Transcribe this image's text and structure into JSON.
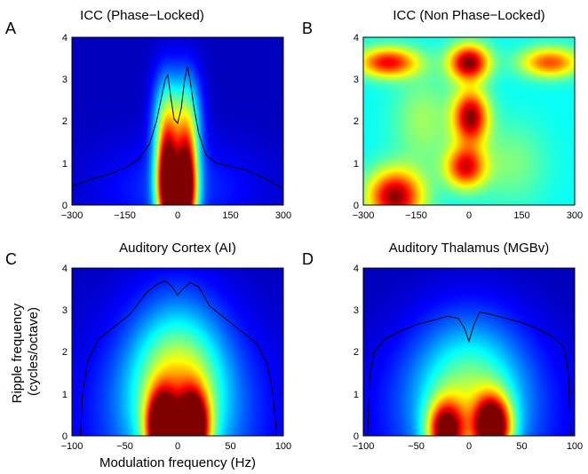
{
  "chart_data": [
    {
      "type": "heatmap",
      "panel_label": "A",
      "title": "ICC (Phase−Locked)",
      "xlim": [
        -300,
        300
      ],
      "ylim": [
        0,
        4
      ],
      "x_ticks": [
        "−300",
        "−150",
        "0",
        "150",
        "300"
      ],
      "y_ticks": [
        "0",
        "1",
        "2",
        "3",
        "4"
      ],
      "contour_x": [
        -300,
        -250,
        -200,
        -150,
        -110,
        -80,
        -60,
        -45,
        -35,
        -28,
        -20,
        -10,
        0,
        10,
        20,
        28,
        35,
        45,
        60,
        80,
        110,
        150,
        200,
        250,
        300
      ],
      "contour_y": [
        0.45,
        0.6,
        0.72,
        0.88,
        1.1,
        1.45,
        2.0,
        2.6,
        3.0,
        3.1,
        2.6,
        2.05,
        1.95,
        2.3,
        3.0,
        3.3,
        3.0,
        2.4,
        1.7,
        1.2,
        1.0,
        0.92,
        0.82,
        0.62,
        0.38
      ],
      "peaks": [
        {
          "x": -30,
          "y": 0.5,
          "sx": 22,
          "sy": 0.9,
          "a": 1.0
        },
        {
          "x": 25,
          "y": 0.4,
          "sx": 22,
          "sy": 0.9,
          "a": 1.0
        },
        {
          "x": -32,
          "y": 2.1,
          "sx": 28,
          "sy": 0.8,
          "a": 0.35
        },
        {
          "x": 28,
          "y": 2.1,
          "sx": 28,
          "sy": 0.8,
          "a": 0.35
        },
        {
          "x": 0,
          "y": 0.4,
          "sx": 160,
          "sy": 0.8,
          "a": 0.12
        }
      ],
      "base": 0.06
    },
    {
      "type": "heatmap",
      "panel_label": "B",
      "title": "ICC (Non Phase−Locked)",
      "xlim": [
        -300,
        300
      ],
      "ylim": [
        0,
        4
      ],
      "x_ticks": [
        "−300",
        "−150",
        "0",
        "150",
        "300"
      ],
      "y_ticks": [
        "0",
        "1",
        "2",
        "3",
        "4"
      ],
      "peaks": [
        {
          "x": -210,
          "y": 0.2,
          "sx": 55,
          "sy": 0.45,
          "a": 0.6
        },
        {
          "x": -230,
          "y": 3.4,
          "sx": 60,
          "sy": 0.25,
          "a": 0.5
        },
        {
          "x": 0,
          "y": 3.4,
          "sx": 40,
          "sy": 0.3,
          "a": 0.62
        },
        {
          "x": 5,
          "y": 2.1,
          "sx": 35,
          "sy": 0.45,
          "a": 0.6
        },
        {
          "x": -10,
          "y": 0.9,
          "sx": 40,
          "sy": 0.35,
          "a": 0.5
        },
        {
          "x": 230,
          "y": 3.4,
          "sx": 60,
          "sy": 0.25,
          "a": 0.42
        },
        {
          "x": -130,
          "y": 2.0,
          "sx": 60,
          "sy": 0.8,
          "a": 0.15
        },
        {
          "x": 120,
          "y": 1.0,
          "sx": 70,
          "sy": 0.7,
          "a": 0.12
        }
      ],
      "base": 0.38
    },
    {
      "type": "heatmap",
      "panel_label": "C",
      "title": "Auditory Cortex (AI)",
      "xlim": [
        -100,
        100
      ],
      "ylim": [
        0,
        4
      ],
      "x_ticks": [
        "−100",
        "−50",
        "0",
        "50",
        "100"
      ],
      "y_ticks": [
        "0",
        "1",
        "2",
        "3",
        "4"
      ],
      "ylabel": "Ripple frequency\n(cycles/octave)",
      "xlabel": "Modulation frequency (Hz)",
      "contour_x": [
        -92,
        -90,
        -85,
        -75,
        -60,
        -45,
        -30,
        -20,
        -12,
        -5,
        0,
        5,
        12,
        20,
        30,
        45,
        60,
        75,
        85,
        90,
        94
      ],
      "contour_y": [
        0.0,
        1.0,
        1.8,
        2.3,
        2.6,
        2.9,
        3.4,
        3.6,
        3.7,
        3.55,
        3.35,
        3.5,
        3.65,
        3.55,
        3.1,
        2.8,
        2.5,
        2.2,
        1.7,
        1.0,
        0.0
      ],
      "peaks": [
        {
          "x": -15,
          "y": 0.15,
          "sx": 10,
          "sy": 0.6,
          "a": 0.95
        },
        {
          "x": 15,
          "y": 0.15,
          "sx": 10,
          "sy": 0.6,
          "a": 0.95
        },
        {
          "x": 0,
          "y": 1.2,
          "sx": 30,
          "sy": 1.3,
          "a": 0.45
        },
        {
          "x": 0,
          "y": 0.5,
          "sx": 60,
          "sy": 1.6,
          "a": 0.2
        }
      ],
      "base": 0.06
    },
    {
      "type": "heatmap",
      "panel_label": "D",
      "title": "Auditory Thalamus (MGBv)",
      "xlim": [
        -100,
        100
      ],
      "ylim": [
        0,
        4
      ],
      "x_ticks": [
        "−100",
        "−50",
        "0",
        "50",
        "100"
      ],
      "y_ticks": [
        "0",
        "1",
        "2",
        "3",
        "4"
      ],
      "contour_x": [
        -96,
        -94,
        -90,
        -80,
        -65,
        -50,
        -35,
        -20,
        -10,
        -4,
        0,
        4,
        10,
        20,
        35,
        50,
        65,
        80,
        90,
        94,
        96
      ],
      "contour_y": [
        0.0,
        1.4,
        2.0,
        2.3,
        2.5,
        2.65,
        2.75,
        2.85,
        2.8,
        2.55,
        2.25,
        2.6,
        2.95,
        2.9,
        2.8,
        2.7,
        2.55,
        2.35,
        2.1,
        1.5,
        0.0
      ],
      "peaks": [
        {
          "x": -22,
          "y": 0.1,
          "sx": 12,
          "sy": 0.5,
          "a": 0.75
        },
        {
          "x": 22,
          "y": 0.2,
          "sx": 12,
          "sy": 0.5,
          "a": 0.95
        },
        {
          "x": 0,
          "y": 1.0,
          "sx": 35,
          "sy": 1.2,
          "a": 0.35
        },
        {
          "x": 0,
          "y": 0.5,
          "sx": 70,
          "sy": 1.6,
          "a": 0.15
        }
      ],
      "base": 0.05
    }
  ]
}
